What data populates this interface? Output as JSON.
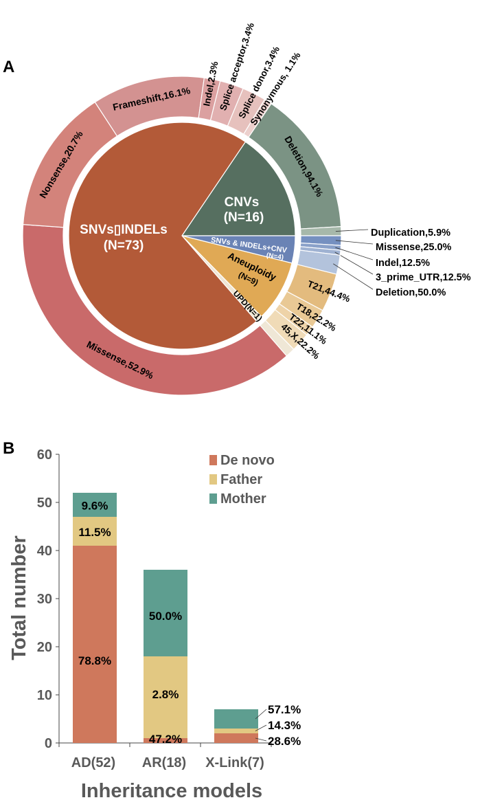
{
  "panels": {
    "a_label": "A",
    "b_label": "B"
  },
  "chart_data": [
    {
      "type": "pie",
      "subtype": "sunburst",
      "inner": [
        {
          "label": "CNVs",
          "sublabel": "(N=16)",
          "n": 16,
          "color": "#566f60"
        },
        {
          "label": "SNVs & INDELs+CNV",
          "sublabel": "(N=4)",
          "n": 4,
          "color": "#6a83b5"
        },
        {
          "label": "Aneuploidy",
          "sublabel": "(N=9)",
          "n": 9,
          "color": "#e0a955"
        },
        {
          "label": "UPD(N=1)",
          "n": 1,
          "color": "#efe6d4"
        },
        {
          "label": "SNVs▯INDELs",
          "sublabel": "(N=73)",
          "n": 73,
          "color": "#b35a38"
        }
      ],
      "outer": [
        {
          "parent": "CNVs",
          "segments": [
            {
              "label": "Deletion,94.1%",
              "pct": 94.1,
              "color": "#7b9384"
            },
            {
              "label": "Duplication,5.9%",
              "pct": 5.9,
              "color": "#a6b8aa"
            }
          ]
        },
        {
          "parent": "SNVs & INDELs+CNV",
          "segments": [
            {
              "label": "Missense,25.0%",
              "pct": 25.0,
              "color": "#7590c0"
            },
            {
              "label": "Indel,12.5%",
              "pct": 12.5,
              "color": "#8aa1c9"
            },
            {
              "label": "3_prime_UTR,12.5%",
              "pct": 12.5,
              "color": "#9fb2d2"
            },
            {
              "label": "Deletion,50.0%",
              "pct": 50.0,
              "color": "#b3c3dc"
            }
          ]
        },
        {
          "parent": "Aneuploidy",
          "segments": [
            {
              "label": "T21,44.4%",
              "pct": 44.4,
              "color": "#e3bb7e"
            },
            {
              "label": "T18,22.2%",
              "pct": 22.2,
              "color": "#e9c995"
            },
            {
              "label": "T22,11.1%",
              "pct": 11.1,
              "color": "#eed3a8"
            },
            {
              "label": "45,X,22.2%",
              "pct": 22.2,
              "color": "#f0dbb7"
            }
          ]
        },
        {
          "parent": "UPD",
          "segments": [
            {
              "pct": 100,
              "color": "#efe7d6"
            }
          ]
        },
        {
          "parent": "SNVs INDELs",
          "segments": [
            {
              "label": "Missense,52.9%",
              "pct": 52.9,
              "color": "#c96a6a"
            },
            {
              "label": "Nonsense,20.7%",
              "pct": 20.7,
              "color": "#d3837b"
            },
            {
              "label": "Frameshift,16.1%",
              "pct": 16.1,
              "color": "#d39291"
            },
            {
              "label": "Indel,2.3%",
              "pct": 2.3,
              "color": "#dba0a0"
            },
            {
              "label": "Splice acceptor,3.4%",
              "pct": 3.4,
              "color": "#e1b0b0"
            },
            {
              "label": "Splice donor,3.4%",
              "pct": 3.4,
              "color": "#e6c1bd"
            },
            {
              "label": "Synonymous, 1.1%",
              "pct": 1.1,
              "color": "#ecd0cd"
            }
          ]
        }
      ]
    },
    {
      "type": "bar",
      "stacked": true,
      "categories": [
        "AD(52)",
        "AR(18)",
        "X-Link(7)"
      ],
      "series": [
        {
          "name": "De novo",
          "color": "#cf785c",
          "values": [
            41,
            1,
            2
          ],
          "labels": [
            "78.8%",
            "2.8%",
            "28.6%"
          ]
        },
        {
          "name": "Father",
          "color": "#e2c882",
          "values": [
            6,
            17,
            1
          ],
          "labels": [
            "11.5%",
            "47.2%",
            "14.3%"
          ]
        },
        {
          "name": "Mother",
          "color": "#5e9e90",
          "values": [
            5,
            18,
            4
          ],
          "labels": [
            "9.6%",
            "50.0%",
            "57.1%"
          ]
        }
      ],
      "xlabel": "Inheritance models",
      "ylabel": "Total number",
      "ylim": [
        0,
        60
      ],
      "yticks": [
        "0",
        "10",
        "20",
        "30",
        "40",
        "50",
        "60"
      ],
      "legend": "top-right",
      "grid": false
    }
  ]
}
